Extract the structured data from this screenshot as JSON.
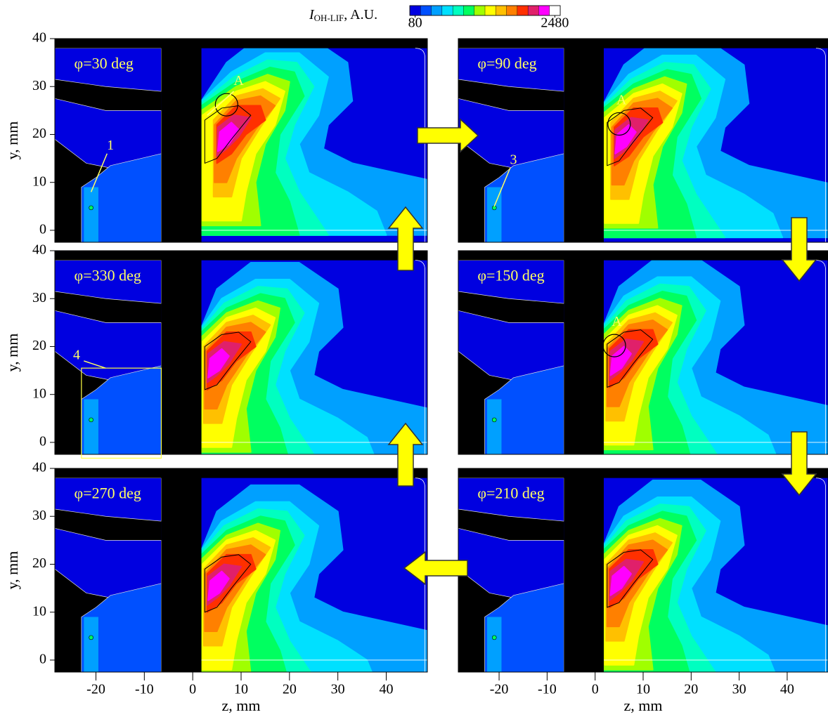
{
  "colorbar": {
    "label": "I",
    "label_sub": "OH-LIF",
    "label_rest": ", A.U.",
    "range": [
      80,
      2480
    ],
    "ticks": [
      80,
      2480
    ],
    "colors": [
      "#0000e0",
      "#0050ff",
      "#00a0ff",
      "#00e0ff",
      "#00ffc0",
      "#00ff60",
      "#a0ff00",
      "#ffff00",
      "#ffc000",
      "#ff8000",
      "#ff3000",
      "#e0206a",
      "#ff00ff",
      "#ffffff"
    ]
  },
  "chart_data": [
    {
      "type": "contour",
      "title": "φ=30 deg",
      "xlim": [
        -28.5,
        48.5
      ],
      "ylim": [
        -2.5,
        40
      ],
      "yticks": [
        0,
        10,
        20,
        30,
        40
      ],
      "ylabel": "y, mm",
      "annotations": [
        "A",
        "1"
      ]
    },
    {
      "type": "contour",
      "title": "φ=90 deg",
      "xlim": [
        -28.5,
        48.5
      ],
      "ylim": [
        -2.5,
        40
      ],
      "annotations": [
        "A",
        "3"
      ]
    },
    {
      "type": "contour",
      "title": "φ=330 deg",
      "xlim": [
        -28.5,
        48.5
      ],
      "ylim": [
        -2.5,
        40
      ],
      "yticks": [
        0,
        10,
        20,
        30,
        40
      ],
      "ylabel": "y, mm",
      "annotations": [
        "4"
      ]
    },
    {
      "type": "contour",
      "title": "φ=150 deg",
      "xlim": [
        -28.5,
        48.5
      ],
      "ylim": [
        -2.5,
        40
      ],
      "annotations": [
        "A"
      ]
    },
    {
      "type": "contour",
      "title": "φ=270 deg",
      "xlim": [
        -28.5,
        48.5
      ],
      "ylim": [
        -2.5,
        40
      ],
      "yticks": [
        0,
        10,
        20,
        30,
        40
      ],
      "ylabel": "y, mm",
      "xticks": [
        -20,
        -10,
        0,
        10,
        20,
        30,
        40
      ],
      "xlabel": "z, mm"
    },
    {
      "type": "contour",
      "title": "φ=210 deg",
      "xlim": [
        -28.5,
        48.5
      ],
      "ylim": [
        -2.5,
        40
      ],
      "xticks": [
        -20,
        -10,
        0,
        10,
        20,
        30,
        40
      ],
      "xlabel": "z, mm"
    }
  ]
}
